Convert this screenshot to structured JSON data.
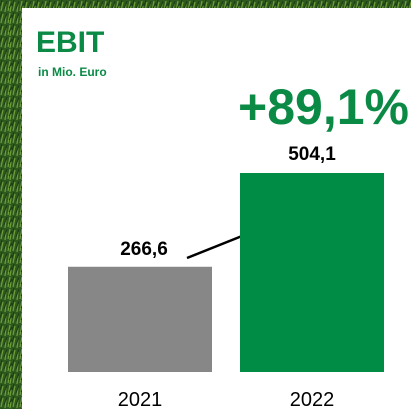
{
  "chart_data": {
    "type": "bar",
    "title": "EBIT",
    "subtitle": "in Mio. Euro",
    "annotation": "+89,1%",
    "categories": [
      "2021",
      "2022"
    ],
    "values": [
      266.6,
      504.1
    ],
    "value_labels": [
      "266,6",
      "504,1"
    ],
    "colors": [
      "#878787",
      "#008c45"
    ],
    "accent_color": "#0a8a45"
  }
}
